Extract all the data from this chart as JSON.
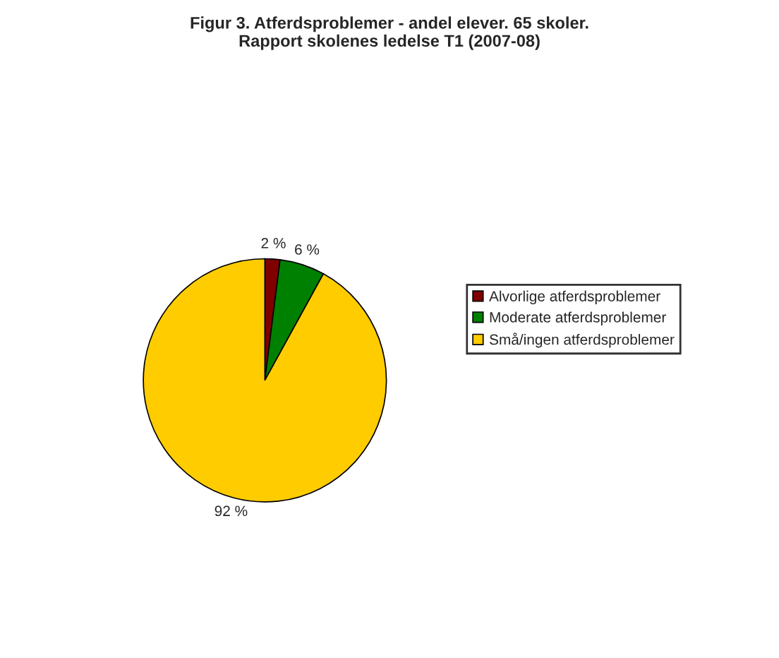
{
  "chart_data": {
    "type": "pie",
    "title": "Figur 3. Atferdsproblemer - andel elever. 65 skoler.\nRapport skolenes ledelse T1 (2007-08)",
    "categories": [
      "Alvorlige atferdsproblemer",
      "Moderate atferdsproblemer",
      "Små/ingen atferdsproblemer"
    ],
    "values": [
      2,
      6,
      92
    ],
    "colors": [
      "#800000",
      "#008000",
      "#ffcc00"
    ],
    "value_labels": [
      "2 %",
      "6 %",
      "92 %"
    ],
    "legend": "right"
  }
}
